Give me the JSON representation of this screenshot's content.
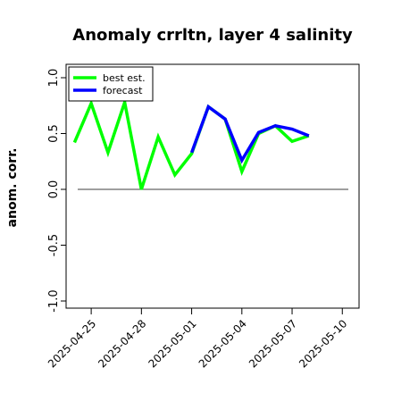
{
  "chart_data": {
    "type": "line",
    "title": "Anomaly crrltn, layer 4 salinity",
    "ylabel": "anom. corr.",
    "xlabel": "",
    "ylim": [
      -1.0,
      1.0
    ],
    "y_ticks": [
      -1.0,
      -0.5,
      0.0,
      0.5,
      1.0
    ],
    "y_tick_labels": [
      "-1.0",
      "-0.5",
      "0.0",
      "0.5",
      "1.0"
    ],
    "xlim": [
      "2025-04-23T12:00",
      "2025-05-11T00:00"
    ],
    "x_ticks": [
      "2025-04-25",
      "2025-04-28",
      "2025-05-01",
      "2025-05-04",
      "2025-05-07",
      "2025-05-10"
    ],
    "x_tick_labels": [
      "2025-04-25",
      "2025-04-28",
      "2025-05-01",
      "2025-05-04",
      "2025-05-07",
      "2025-05-10"
    ],
    "highlight_tick": "2025-05-01",
    "highlight_color": "#228B22",
    "reference_line_y": 0.0,
    "grid": false,
    "legend_position": "top-left",
    "series": [
      {
        "name": "best est.",
        "color": "#00FF00",
        "x": [
          "2025-04-24",
          "2025-04-25",
          "2025-04-26",
          "2025-04-27",
          "2025-04-28",
          "2025-04-29",
          "2025-04-30",
          "2025-05-01",
          "2025-05-02",
          "2025-05-03",
          "2025-05-04",
          "2025-05-05",
          "2025-05-06",
          "2025-05-07",
          "2025-05-08"
        ],
        "values": [
          0.42,
          0.77,
          0.33,
          0.78,
          0.0,
          0.47,
          0.13,
          0.32,
          0.74,
          0.63,
          0.16,
          0.5,
          0.57,
          0.43,
          0.48
        ]
      },
      {
        "name": "forecast",
        "color": "#0000FF",
        "x": [
          "2025-05-01",
          "2025-05-02",
          "2025-05-03",
          "2025-05-04",
          "2025-05-05",
          "2025-05-06",
          "2025-05-07",
          "2025-05-08"
        ],
        "values": [
          0.33,
          0.74,
          0.63,
          0.26,
          0.51,
          0.57,
          0.54,
          0.48
        ]
      }
    ]
  }
}
